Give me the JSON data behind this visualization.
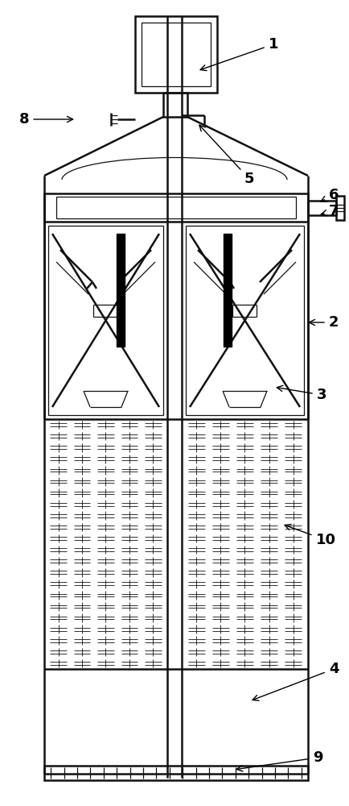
{
  "bg_color": "#ffffff",
  "line_color": "#111111",
  "lw_main": 1.8,
  "lw_thin": 0.9,
  "lw_hatch": 0.6
}
